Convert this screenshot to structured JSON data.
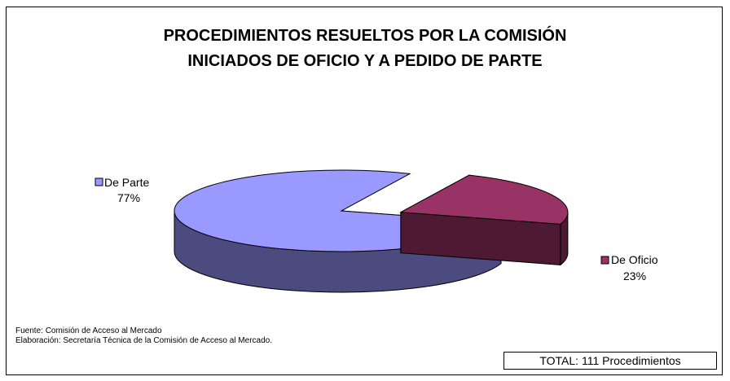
{
  "chart_data": {
    "type": "pie",
    "title_line1": "PROCEDIMIENTOS RESUELTOS POR LA COMISIÓN",
    "title_line2": "INICIADOS DE OFICIO Y A PEDIDO DE PARTE",
    "slices": [
      {
        "name": "De Parte",
        "value": 77,
        "label": "77%",
        "color": "#9999ff",
        "side_color": "#4b4b80"
      },
      {
        "name": "De Oficio",
        "value": 23,
        "label": "23%",
        "color": "#993366",
        "side_color": "#4d1933"
      }
    ]
  },
  "footer": {
    "source": "Fuente: Comisión de Acceso al Mercado",
    "elaboration": "Elaboración: Secretaría Técnica de la Comisión de Acceso al Mercado."
  },
  "total": "TOTAL: 111 Procedimientos"
}
